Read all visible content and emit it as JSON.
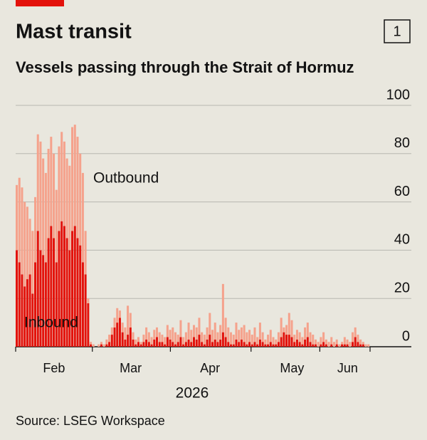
{
  "header": {
    "title": "Mast transit",
    "subtitle": "Vessels passing through the Strait of Hormuz",
    "badge": "1"
  },
  "chart_data": {
    "type": "bar",
    "stacked": true,
    "x_label": "2026",
    "categories": [
      null,
      null,
      null,
      null,
      null,
      null,
      null,
      null,
      null,
      null,
      null,
      null,
      null,
      null,
      "Feb",
      null,
      null,
      null,
      null,
      null,
      null,
      null,
      null,
      null,
      null,
      null,
      null,
      null,
      null,
      null,
      null,
      null,
      null,
      null,
      null,
      null,
      null,
      null,
      null,
      null,
      null,
      null,
      null,
      "Mar",
      null,
      null,
      null,
      null,
      null,
      null,
      null,
      null,
      null,
      null,
      null,
      null,
      null,
      null,
      null,
      null,
      null,
      null,
      null,
      null,
      null,
      null,
      null,
      null,
      null,
      null,
      null,
      null,
      null,
      "Apr",
      null,
      null,
      null,
      null,
      null,
      null,
      null,
      null,
      null,
      null,
      null,
      null,
      null,
      null,
      null,
      null,
      null,
      null,
      null,
      null,
      null,
      null,
      null,
      null,
      null,
      null,
      null,
      null,
      null,
      null,
      "May",
      null,
      null,
      null,
      null,
      null,
      null,
      null,
      null,
      null,
      null,
      null,
      null,
      null,
      null,
      null,
      null,
      null,
      null,
      null,
      null,
      "Jun",
      null,
      null,
      null,
      null,
      null,
      null,
      null,
      null
    ],
    "series": [
      {
        "name": "Inbound",
        "color": "#e3120b",
        "values": [
          40,
          35,
          30,
          25,
          28,
          30,
          22,
          35,
          48,
          40,
          38,
          35,
          45,
          50,
          45,
          35,
          48,
          52,
          50,
          45,
          40,
          48,
          50,
          45,
          42,
          35,
          30,
          18,
          1,
          0,
          0,
          0,
          1,
          0,
          1,
          2,
          5,
          8,
          10,
          12,
          6,
          3,
          5,
          8,
          3,
          1,
          2,
          1,
          2,
          3,
          2,
          1,
          3,
          4,
          2,
          2,
          1,
          4,
          3,
          2,
          1,
          2,
          4,
          1,
          2,
          3,
          2,
          4,
          3,
          5,
          2,
          1,
          3,
          5,
          2,
          3,
          2,
          3,
          6,
          4,
          2,
          1,
          1,
          3,
          2,
          3,
          2,
          1,
          2,
          1,
          2,
          1,
          3,
          2,
          1,
          1,
          2,
          1,
          1,
          2,
          4,
          6,
          5,
          5,
          4,
          2,
          3,
          2,
          1,
          3,
          4,
          2,
          1,
          1,
          0,
          1,
          2,
          1,
          0,
          1,
          0,
          1,
          0,
          1,
          1,
          1,
          0,
          2,
          4,
          2,
          1,
          1,
          0,
          0
        ]
      },
      {
        "name": "Outbound",
        "color": "#f5a28c",
        "values": [
          27,
          35,
          36,
          35,
          30,
          23,
          26,
          27,
          40,
          45,
          40,
          37,
          37,
          37,
          35,
          30,
          35,
          37,
          35,
          33,
          35,
          43,
          42,
          42,
          38,
          37,
          18,
          2,
          1,
          1,
          0,
          1,
          1,
          1,
          2,
          3,
          3,
          4,
          6,
          3,
          4,
          5,
          12,
          6,
          3,
          2,
          2,
          1,
          3,
          5,
          4,
          3,
          4,
          4,
          4,
          3,
          3,
          5,
          4,
          6,
          5,
          3,
          7,
          3,
          4,
          7,
          5,
          5,
          5,
          7,
          4,
          4,
          5,
          9,
          5,
          7,
          4,
          6,
          20,
          8,
          6,
          5,
          4,
          7,
          5,
          5,
          7,
          5,
          5,
          4,
          6,
          3,
          7,
          4,
          2,
          4,
          5,
          3,
          2,
          4,
          8,
          2,
          4,
          9,
          7,
          3,
          4,
          4,
          3,
          5,
          6,
          4,
          4,
          2,
          2,
          3,
          4,
          2,
          2,
          3,
          2,
          2,
          1,
          1,
          3,
          2,
          2,
          4,
          4,
          3,
          2,
          1,
          1,
          1
        ]
      }
    ],
    "ylim": [
      0,
      100
    ],
    "yticks": [
      0,
      20,
      40,
      60,
      80,
      100
    ],
    "grid": true
  },
  "source": "Source: LSEG Workspace"
}
